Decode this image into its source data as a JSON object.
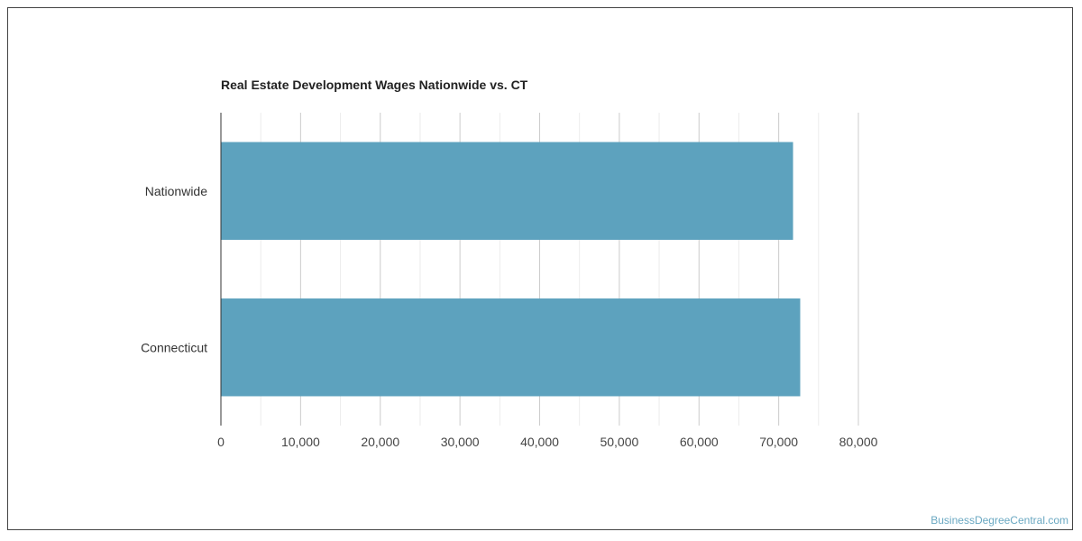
{
  "chart_data": {
    "type": "bar",
    "orientation": "horizontal",
    "title": "Real Estate Development Wages Nationwide vs. CT",
    "xlabel": "",
    "ylabel": "",
    "categories": [
      "Nationwide",
      "Connecticut"
    ],
    "values": [
      71800,
      72700
    ],
    "xlim": [
      0,
      80000
    ],
    "xticks": [
      "0",
      "10,000",
      "20,000",
      "30,000",
      "40,000",
      "50,000",
      "60,000",
      "70,000",
      "80,000"
    ],
    "grid": true,
    "bar_color": "#5da2be",
    "legend": "none"
  },
  "footer": {
    "watermark": "BusinessDegreeCentral.com"
  }
}
